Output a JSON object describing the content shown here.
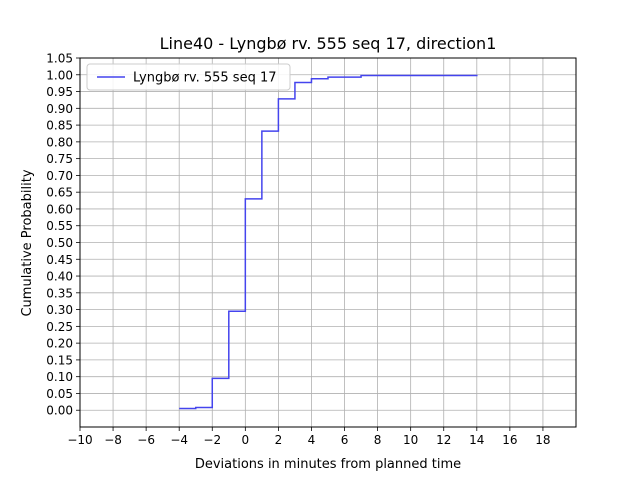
{
  "chart_data": {
    "type": "line",
    "step": "post",
    "title": "Line40 - Lyngbø rv. 555 seq 17, direction1",
    "xlabel": "Deviations in minutes from planned time",
    "ylabel": "Cumulative Probability",
    "xlim": [
      -10,
      20
    ],
    "ylim": [
      -0.05,
      1.05
    ],
    "xticks": [
      -10,
      -8,
      -6,
      -4,
      -2,
      0,
      2,
      4,
      6,
      8,
      10,
      12,
      14,
      16,
      18
    ],
    "xtick_labels": [
      "−10",
      "−8",
      "−6",
      "−4",
      "−2",
      "0",
      "2",
      "4",
      "6",
      "8",
      "10",
      "12",
      "14",
      "16",
      "18"
    ],
    "yticks": [
      0,
      0.05,
      0.1,
      0.15,
      0.2,
      0.25,
      0.3,
      0.35,
      0.4,
      0.45,
      0.5,
      0.55,
      0.6,
      0.65,
      0.7,
      0.75,
      0.8,
      0.85,
      0.9,
      0.95,
      1.0,
      1.05
    ],
    "ytick_labels": [
      "0.00",
      "0.05",
      "0.10",
      "0.15",
      "0.20",
      "0.25",
      "0.30",
      "0.35",
      "0.40",
      "0.45",
      "0.50",
      "0.55",
      "0.60",
      "0.65",
      "0.70",
      "0.75",
      "0.80",
      "0.85",
      "0.90",
      "0.95",
      "1.00",
      "1.05"
    ],
    "grid": true,
    "legend": "upper-left",
    "series": [
      {
        "name": "Lyngbø rv. 555 seq 17",
        "color": "#4444ee",
        "x": [
          -4,
          -3,
          -2,
          -1,
          0,
          1,
          2,
          3,
          4,
          5,
          7,
          14
        ],
        "y": [
          0.005,
          0.008,
          0.095,
          0.295,
          0.63,
          0.832,
          0.928,
          0.977,
          0.988,
          0.993,
          0.998,
          1.0
        ]
      }
    ]
  }
}
